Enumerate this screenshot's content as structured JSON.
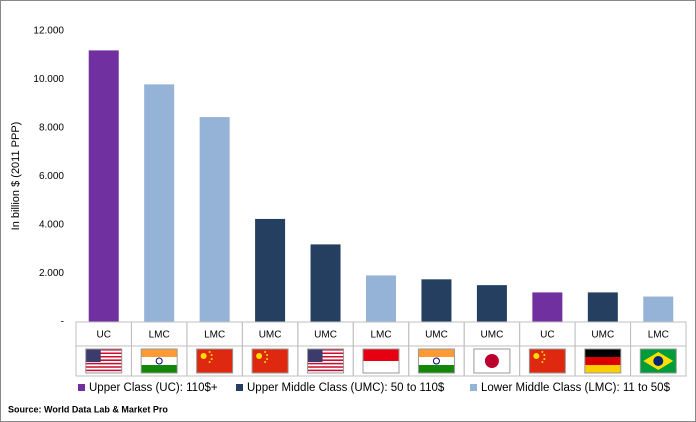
{
  "chart_data": {
    "type": "bar",
    "y_label": "In billion $ (2011 PPP)",
    "categories": [
      "UC",
      "LMC",
      "LMC",
      "UMC",
      "UMC",
      "LMC",
      "UMC",
      "UMC",
      "UC",
      "UMC",
      "LMC"
    ],
    "series": [
      {
        "name": "Upper Class (UC): 110$+",
        "color": "#7030a0",
        "values": [
          11200,
          null,
          null,
          null,
          null,
          null,
          null,
          null,
          1220,
          null,
          null
        ]
      },
      {
        "name": "Upper Middle Class (UMC): 50 to 110$",
        "color": "#243f60",
        "values": [
          null,
          null,
          null,
          4250,
          3200,
          null,
          1760,
          1520,
          null,
          1220,
          null
        ]
      },
      {
        "name": "Lower Middle Class (LMC): 11 to 50$",
        "color": "#95b3d7",
        "values": [
          null,
          9800,
          8450,
          null,
          null,
          1920,
          null,
          null,
          null,
          null,
          1050
        ]
      }
    ],
    "ylim": [
      0,
      12000
    ],
    "yticks": [
      {
        "value": 0,
        "label": "-"
      },
      {
        "value": 2000,
        "label": "2.000"
      },
      {
        "value": 4000,
        "label": "4.000"
      },
      {
        "value": 6000,
        "label": "6.000"
      },
      {
        "value": 8000,
        "label": "8.000"
      },
      {
        "value": 10000,
        "label": "10.000"
      },
      {
        "value": 12000,
        "label": "12.000"
      }
    ],
    "grid": false,
    "source": "Source: World Data Lab & Market Pro"
  }
}
